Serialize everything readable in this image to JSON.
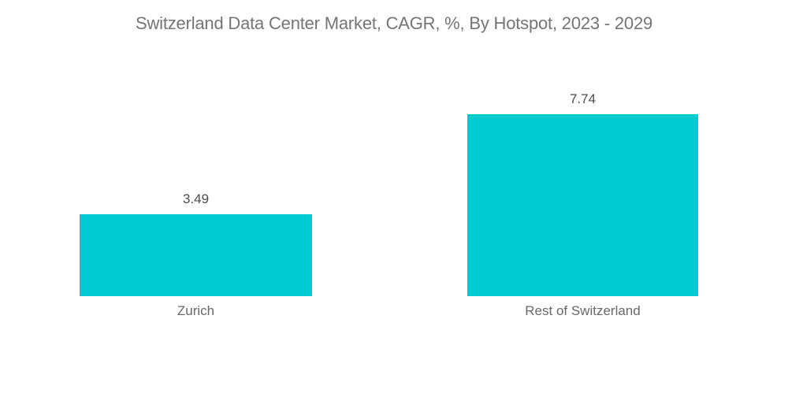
{
  "chart": {
    "title": "Switzerland Data Center Market, CAGR, %, By Hotspot, 2023 - 2029"
  },
  "chart_data": {
    "type": "bar",
    "title": "Switzerland Data Center Market, CAGR, %, By Hotspot, 2023 - 2029",
    "categories": [
      "Zurich",
      "Rest of Switzerland"
    ],
    "values": [
      3.49,
      7.74
    ],
    "value_labels": [
      "3.49",
      "7.74"
    ],
    "xlabel": "",
    "ylabel": "",
    "ylim": [
      0,
      9
    ],
    "grid": false,
    "legend": "none",
    "orientation": "vertical",
    "bar_color": "#00cbd1",
    "title_color": "#757578",
    "value_label_color": "#4d4d4f",
    "category_label_color": "#68696b",
    "background_color": "#ffffff"
  }
}
